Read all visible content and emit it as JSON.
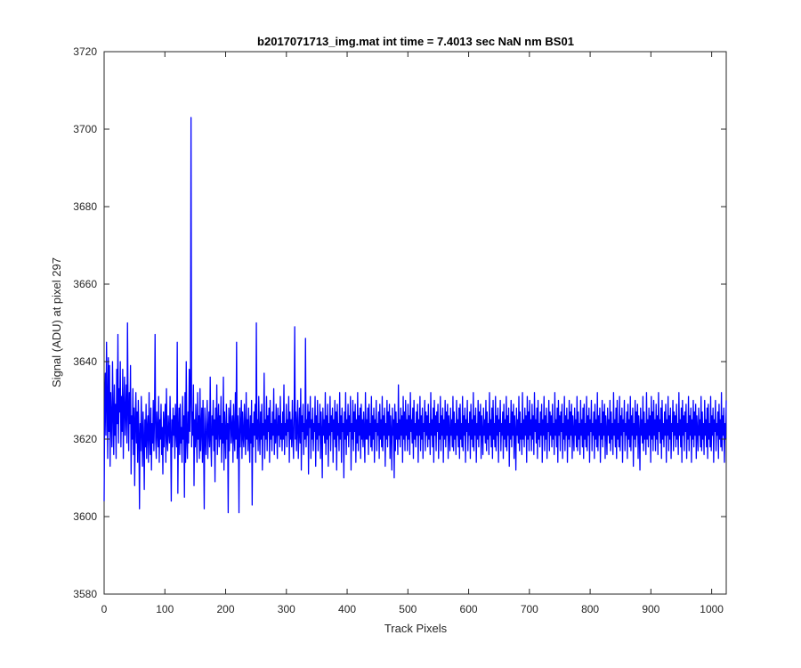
{
  "chart_data": {
    "type": "line",
    "title": "b2017071713_img.mat int time = 7.4013 sec  NaN nm BS01",
    "xlabel": "Track Pixels",
    "ylabel": "Signal (ADU) at pixel 297",
    "xlim": [
      0,
      1024
    ],
    "ylim": [
      3580,
      3720
    ],
    "xticks": [
      0,
      100,
      200,
      300,
      400,
      500,
      600,
      700,
      800,
      900,
      1000
    ],
    "yticks": [
      3580,
      3600,
      3620,
      3640,
      3660,
      3680,
      3700,
      3720
    ],
    "grid": false,
    "legend": "none",
    "series": [
      {
        "color": "#0000ff",
        "x_start": 1,
        "x_step": 1,
        "values": [
          3604,
          3628,
          3637,
          3621,
          3645,
          3630,
          3615,
          3641,
          3622,
          3639,
          3613,
          3632,
          3625,
          3618,
          3640,
          3627,
          3616,
          3634,
          3621,
          3629,
          3615,
          3638,
          3624,
          3647,
          3619,
          3633,
          3627,
          3640,
          3618,
          3631,
          3622,
          3638,
          3615,
          3629,
          3636,
          3621,
          3627,
          3634,
          3619,
          3650,
          3628,
          3617,
          3632,
          3624,
          3639,
          3611,
          3626,
          3620,
          3633,
          3616,
          3628,
          3608,
          3625,
          3632,
          3619,
          3627,
          3614,
          3630,
          3621,
          3602,
          3624,
          3617,
          3631,
          3622,
          3613,
          3627,
          3620,
          3607,
          3625,
          3618,
          3629,
          3615,
          3623,
          3626,
          3614,
          3632,
          3621,
          3616,
          3628,
          3612,
          3624,
          3619,
          3630,
          3617,
          3625,
          3647,
          3620,
          3615,
          3627,
          3622,
          3618,
          3631,
          3614,
          3625,
          3620,
          3629,
          3616,
          3623,
          3611,
          3627,
          3618,
          3624,
          3629,
          3614,
          3633,
          3620,
          3617,
          3626,
          3622,
          3619,
          3631,
          3621,
          3604,
          3625,
          3618,
          3628,
          3621,
          3626,
          3615,
          3629,
          3622,
          3618,
          3645,
          3606,
          3621,
          3628,
          3616,
          3629,
          3619,
          3623,
          3614,
          3631,
          3620,
          3626,
          3605,
          3632,
          3614,
          3640,
          3620,
          3615,
          3627,
          3619,
          3638,
          3622,
          3630,
          3703,
          3618,
          3627,
          3621,
          3634,
          3608,
          3625,
          3618,
          3629,
          3621,
          3614,
          3632,
          3620,
          3626,
          3615,
          3633,
          3617,
          3623,
          3628,
          3614,
          3630,
          3619,
          3602,
          3628,
          3621,
          3616,
          3624,
          3630,
          3615,
          3622,
          3627,
          3618,
          3636,
          3620,
          3613,
          3626,
          3621,
          3630,
          3617,
          3625,
          3609,
          3628,
          3620,
          3634,
          3616,
          3623,
          3629,
          3618,
          3626,
          3620,
          3631,
          3614,
          3624,
          3619,
          3636,
          3612,
          3627,
          3622,
          3615,
          3629,
          3620,
          3624,
          3601,
          3628,
          3617,
          3625,
          3630,
          3619,
          3623,
          3626,
          3614,
          3629,
          3621,
          3617,
          3632,
          3620,
          3645,
          3615,
          3626,
          3622,
          3601,
          3628,
          3618,
          3624,
          3630,
          3615,
          3627,
          3621,
          3618,
          3629,
          3622,
          3616,
          3632,
          3620,
          3625,
          3617,
          3628,
          3621,
          3614,
          3626,
          3619,
          3630,
          3603,
          3624,
          3618,
          3627,
          3621,
          3629,
          3614,
          3650,
          3620,
          3625,
          3617,
          3631,
          3622,
          3616,
          3627,
          3620,
          3629,
          3612,
          3624,
          3621,
          3637,
          3615,
          3625,
          3620,
          3631,
          3617,
          3626,
          3622,
          3628,
          3614,
          3630,
          3620,
          3624,
          3617,
          3627,
          3621,
          3633,
          3616,
          3625,
          3619,
          3629,
          3622,
          3615,
          3628,
          3621,
          3626,
          3618,
          3631,
          3620,
          3624,
          3617,
          3627,
          3620,
          3634,
          3616,
          3624,
          3621,
          3629,
          3618,
          3625,
          3622,
          3631,
          3614,
          3627,
          3620,
          3625,
          3618,
          3630,
          3621,
          3615,
          3626,
          3649,
          3620,
          3627,
          3617,
          3624,
          3630,
          3615,
          3621,
          3628,
          3619,
          3633,
          3612,
          3626,
          3622,
          3629,
          3616,
          3624,
          3620,
          3646,
          3618,
          3625,
          3621,
          3629,
          3611,
          3627,
          3623,
          3631,
          3615,
          3625,
          3620,
          3628,
          3617,
          3624,
          3622,
          3631,
          3613,
          3626,
          3620,
          3630,
          3617,
          3624,
          3621,
          3629,
          3615,
          3627,
          3622,
          3610,
          3628,
          3621,
          3625,
          3619,
          3632,
          3616,
          3626,
          3620,
          3629,
          3613,
          3624,
          3621,
          3631,
          3617,
          3626,
          3622,
          3628,
          3614,
          3625,
          3620,
          3630,
          3618,
          3627,
          3612,
          3629,
          3621,
          3624,
          3617,
          3632,
          3620,
          3626,
          3614,
          3628,
          3622,
          3624,
          3610,
          3627,
          3620,
          3632,
          3616,
          3625,
          3621,
          3629,
          3618,
          3626,
          3622,
          3631,
          3612,
          3624,
          3620,
          3630,
          3617,
          3627,
          3622,
          3629,
          3614,
          3625,
          3619,
          3632,
          3617,
          3626,
          3621,
          3628,
          3615,
          3629,
          3620,
          3625,
          3618,
          3627,
          3622,
          3614,
          3632,
          3620,
          3625,
          3620,
          3628,
          3616,
          3629,
          3621,
          3624,
          3618,
          3631,
          3617,
          3626,
          3620,
          3628,
          3614,
          3625,
          3622,
          3630,
          3617,
          3624,
          3621,
          3627,
          3615,
          3629,
          3620,
          3625,
          3618,
          3631,
          3617,
          3626,
          3621,
          3628,
          3613,
          3624,
          3620,
          3630,
          3618,
          3627,
          3621,
          3629,
          3615,
          3626,
          3622,
          3612,
          3628,
          3621,
          3625,
          3610,
          3629,
          3617,
          3627,
          3620,
          3624,
          3616,
          3634,
          3620,
          3625,
          3618,
          3628,
          3621,
          3626,
          3614,
          3631,
          3620,
          3627,
          3617,
          3630,
          3621,
          3625,
          3617,
          3629,
          3620,
          3626,
          3616,
          3632,
          3622,
          3625,
          3619,
          3628,
          3615,
          3630,
          3620,
          3624,
          3618,
          3627,
          3621,
          3629,
          3614,
          3625,
          3621,
          3631,
          3617,
          3626,
          3620,
          3628,
          3615,
          3624,
          3622,
          3630,
          3617,
          3627,
          3621,
          3626,
          3618,
          3629,
          3620,
          3624,
          3616,
          3632,
          3621,
          3625,
          3618,
          3628,
          3614,
          3630,
          3621,
          3626,
          3617,
          3627,
          3622,
          3629,
          3615,
          3624,
          3620,
          3631,
          3617,
          3626,
          3621,
          3628,
          3614,
          3625,
          3620,
          3630,
          3618,
          3627,
          3621,
          3629,
          3615,
          3626,
          3622,
          3617,
          3628,
          3621,
          3625,
          3618,
          3631,
          3617,
          3627,
          3620,
          3624,
          3616,
          3630,
          3621,
          3625,
          3618,
          3628,
          3615,
          3629,
          3620,
          3624,
          3618,
          3631,
          3617,
          3626,
          3621,
          3628,
          3614,
          3625,
          3622,
          3630,
          3617,
          3624,
          3621,
          3627,
          3615,
          3629,
          3620,
          3625,
          3618,
          3632,
          3617,
          3626,
          3621,
          3628,
          3614,
          3624,
          3620,
          3630,
          3618,
          3627,
          3621,
          3629,
          3615,
          3626,
          3622,
          3616,
          3628,
          3621,
          3625,
          3619,
          3630,
          3617,
          3627,
          3620,
          3624,
          3616,
          3632,
          3621,
          3625,
          3618,
          3628,
          3615,
          3630,
          3620,
          3624,
          3618,
          3631,
          3617,
          3626,
          3621,
          3628,
          3614,
          3625,
          3622,
          3630,
          3617,
          3624,
          3621,
          3627,
          3615,
          3629,
          3620,
          3625,
          3618,
          3631,
          3617,
          3626,
          3621,
          3628,
          3613,
          3624,
          3620,
          3630,
          3618,
          3627,
          3621,
          3629,
          3615,
          3626,
          3622,
          3612,
          3628,
          3621,
          3625,
          3619,
          3631,
          3617,
          3627,
          3620,
          3624,
          3616,
          3632,
          3620,
          3625,
          3618,
          3628,
          3621,
          3626,
          3614,
          3631,
          3620,
          3627,
          3617,
          3630,
          3621,
          3625,
          3617,
          3629,
          3620,
          3626,
          3616,
          3632,
          3622,
          3625,
          3619,
          3628,
          3615,
          3630,
          3620,
          3624,
          3618,
          3627,
          3621,
          3629,
          3614,
          3625,
          3621,
          3631,
          3617,
          3626,
          3620,
          3628,
          3615,
          3624,
          3622,
          3630,
          3617,
          3627,
          3621,
          3626,
          3618,
          3629,
          3620,
          3624,
          3616,
          3632,
          3621,
          3625,
          3618,
          3628,
          3614,
          3630,
          3621,
          3626,
          3617,
          3627,
          3622,
          3629,
          3615,
          3624,
          3620,
          3631,
          3617,
          3626,
          3621,
          3628,
          3614,
          3625,
          3620,
          3630,
          3618,
          3627,
          3621,
          3629,
          3615,
          3626,
          3622,
          3617,
          3628,
          3621,
          3625,
          3618,
          3631,
          3617,
          3627,
          3620,
          3624,
          3616,
          3630,
          3621,
          3625,
          3618,
          3628,
          3615,
          3629,
          3620,
          3624,
          3618,
          3631,
          3617,
          3626,
          3621,
          3628,
          3614,
          3625,
          3622,
          3630,
          3617,
          3624,
          3621,
          3627,
          3615,
          3629,
          3620,
          3625,
          3618,
          3632,
          3617,
          3626,
          3621,
          3628,
          3614,
          3624,
          3620,
          3630,
          3618,
          3627,
          3621,
          3629,
          3615,
          3626,
          3622,
          3616,
          3628,
          3621,
          3625,
          3619,
          3630,
          3617,
          3627,
          3620,
          3624,
          3616,
          3632,
          3621,
          3625,
          3618,
          3628,
          3615,
          3630,
          3620,
          3624,
          3618,
          3631,
          3617,
          3626,
          3621,
          3628,
          3614,
          3625,
          3622,
          3630,
          3617,
          3624,
          3621,
          3627,
          3615,
          3629,
          3620,
          3625,
          3618,
          3631,
          3617,
          3626,
          3621,
          3628,
          3613,
          3624,
          3620,
          3630,
          3618,
          3627,
          3621,
          3629,
          3615,
          3626,
          3622,
          3612,
          3628,
          3621,
          3625,
          3619,
          3631,
          3617,
          3627,
          3620,
          3624,
          3616,
          3632,
          3620,
          3625,
          3618,
          3628,
          3621,
          3626,
          3614,
          3631,
          3620,
          3627,
          3617,
          3630,
          3621,
          3625,
          3617,
          3629,
          3620,
          3626,
          3616,
          3632,
          3622,
          3625,
          3619,
          3628,
          3615,
          3630,
          3620,
          3624,
          3618,
          3627,
          3621,
          3629,
          3614,
          3625,
          3621,
          3631,
          3617,
          3626,
          3620,
          3628,
          3615,
          3624,
          3622,
          3630,
          3617,
          3627,
          3621,
          3626,
          3618,
          3629,
          3620,
          3624,
          3616,
          3632,
          3621,
          3625,
          3618,
          3628,
          3614,
          3630,
          3621,
          3626,
          3617,
          3627,
          3622,
          3629,
          3615,
          3624,
          3620,
          3631,
          3617,
          3626,
          3621,
          3628,
          3614,
          3625,
          3620,
          3630,
          3618,
          3627,
          3621,
          3629,
          3615,
          3626,
          3622,
          3617,
          3628,
          3621,
          3625,
          3618,
          3631,
          3617,
          3627,
          3620,
          3624,
          3616,
          3630,
          3621,
          3625,
          3618,
          3628,
          3615,
          3629,
          3620,
          3624,
          3618,
          3631,
          3617,
          3626,
          3621,
          3628,
          3614,
          3625,
          3622,
          3630,
          3617,
          3624,
          3621,
          3627,
          3615,
          3629,
          3620,
          3625,
          3618,
          3632,
          3617,
          3626,
          3621,
          3628,
          3614,
          3624,
          3620,
          3630
        ]
      }
    ]
  }
}
